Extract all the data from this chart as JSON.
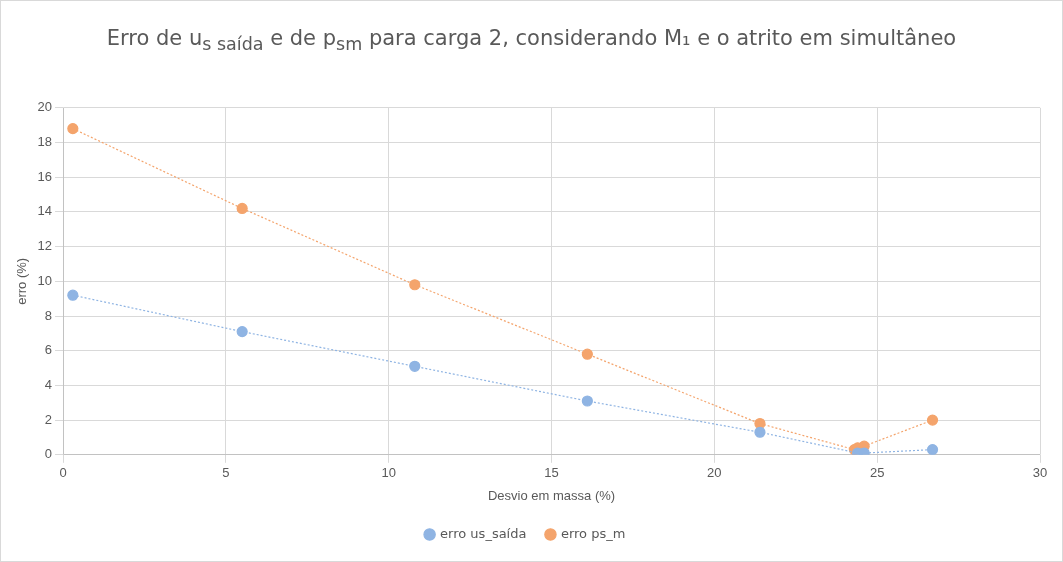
{
  "chart_data": {
    "type": "line",
    "title": "Erro de u$_{s saída}$ e de p$_{sm}$ para carga 2, considerando M₁ e o atrito em simultâneo",
    "xlabel": "Desvio em massa (%)",
    "ylabel": "erro (%)",
    "xlim": [
      0,
      30
    ],
    "xticks": [
      0,
      5,
      10,
      15,
      20,
      25,
      30
    ],
    "ylim": [
      0,
      20
    ],
    "yticks": [
      0,
      2,
      4,
      6,
      8,
      10,
      12,
      14,
      16,
      18,
      20
    ],
    "grid": true,
    "legend": "bottom",
    "marker": "circle",
    "line_style": "dotted",
    "series": [
      {
        "name": "erro us_saída",
        "color": "#8fb4e3",
        "x": [
          0.3,
          5.5,
          10.8,
          16.1,
          21.4,
          24.4,
          24.6,
          26.7
        ],
        "values": [
          9.2,
          7.1,
          5.1,
          3.1,
          1.3,
          0.1,
          0.1,
          0.3
        ]
      },
      {
        "name": "erro ps_m",
        "color": "#f4a46c",
        "x": [
          0.3,
          5.5,
          10.8,
          16.1,
          21.4,
          24.3,
          24.4,
          24.6,
          26.7
        ],
        "values": [
          18.8,
          14.2,
          9.8,
          5.8,
          1.8,
          0.3,
          0.4,
          0.5,
          2.0
        ]
      }
    ]
  }
}
